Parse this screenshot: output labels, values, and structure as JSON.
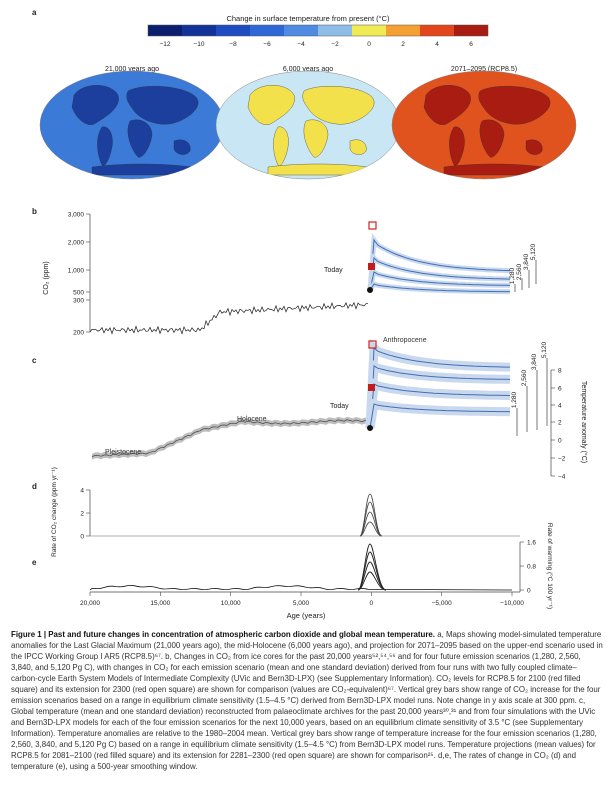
{
  "panel_a": {
    "letter": "a",
    "colorbar": {
      "title": "Change in surface temperature from present (°C)",
      "ticks": [
        "−12",
        "−10",
        "−8",
        "−6",
        "−4",
        "−2",
        "0",
        "2",
        "4",
        "6"
      ],
      "colors": [
        "#0c1f6e",
        "#14339a",
        "#1f4cc0",
        "#2e68d6",
        "#4f8be3",
        "#8fbde8",
        "#f0ea55",
        "#f4a032",
        "#e2461d",
        "#a81c12"
      ]
    },
    "maps": [
      {
        "label": "21,000 years ago",
        "ocean": "#3b7ad6",
        "land": "#1c3f9e"
      },
      {
        "label": "6,000 years ago",
        "ocean": "#c9e6f4",
        "land": "#f2e14a"
      },
      {
        "label": "2071–2095 (RCP8.5)",
        "ocean": "#e0521e",
        "land": "#a81c12"
      }
    ]
  },
  "panel_b": {
    "letter": "b",
    "ylabel": "CO₂ (ppm)",
    "yticks": [
      "3,000",
      "2,000",
      "1,000",
      "500",
      "300",
      "200"
    ],
    "today_label": "Today",
    "scenario_labels": [
      "1,280",
      "2,560",
      "3,840",
      "5,120"
    ]
  },
  "panel_c": {
    "letter": "c",
    "era_labels": {
      "pleistocene": "Pleistocene",
      "holocene": "Holocene",
      "anthropocene": "Anthropocene"
    },
    "today_label": "Today",
    "ylabel_right": "Temperature anomaly (°C)",
    "yticks_right": [
      "8",
      "6",
      "4",
      "2",
      "0",
      "−2",
      "−4"
    ],
    "scenario_labels": [
      "1,280",
      "2,560",
      "3,840",
      "5,120"
    ]
  },
  "panel_d": {
    "letter": "d",
    "ylabel": "Rate of CO₂ change (ppm yr⁻¹)",
    "yticks": [
      "4",
      "2",
      "0"
    ]
  },
  "panel_e": {
    "letter": "e",
    "ylabel_right": "Rate of warming (°C 100 yr⁻¹)",
    "yticks_right": [
      "1.6",
      "0.8",
      "0"
    ]
  },
  "xaxis": {
    "label": "Age (years)",
    "ticks": [
      "20,000",
      "15,000",
      "10,000",
      "5,000",
      "0",
      "−5,000",
      "−10,000"
    ]
  },
  "caption": {
    "title": "Figure 1 | Past and future changes in concentration of atmospheric carbon dioxide and global mean temperature.",
    "body": "a, Maps showing model-simulated temperature anomalies for the Last Glacial Maximum (21,000 years ago), the mid-Holocene (6,000 years ago), and projection for 2071–2095 based on the upper-end scenario used in the IPCC Working Group I AR5 (RCP8.5)⁶⁷. b, Changes in CO₂ from ice cores for the past 20,000 years⁵²,⁵⁴,⁵⁶ and for four future emission scenarios (1,280, 2,560, 3,840, and 5,120 Pg C), with changes in CO₂ for each emission scenario (mean and one standard deviation) derived from four runs with two fully coupled climate–carbon-cycle Earth System Models of Intermediate Complexity (UVic and Bern3D-LPX) (see Supplementary Information). CO₂ levels for RCP8.5 for 2100 (red filled square) and its extension for 2300 (red open square) are shown for comparison (values are CO₂-equivalent)⁶⁷. Vertical grey bars show range of CO₂ increase for the four emission scenarios based on a range in equilibrium climate sensitivity (1.5–4.5 °C) derived from Bern3D-LPX model runs. Note change in y axis scale at 300 ppm. c, Global temperature (mean and one standard deviation) reconstructed from palaeoclimate archives for the past 20,000 years³⁰,³¹ and from four simulations with the UVic and Bern3D-LPX models for each of the four emission scenarios for the next 10,000 years, based on an equilibrium climate sensitivity of 3.5 °C (see Supplementary Information). Temperature anomalies are relative to the 1980–2004 mean. Vertical grey bars show range of temperature increase for the four emission scenarios (1,280, 2,560, 3,840, and 5,120 Pg C) based on a range in equilibrium climate sensitivity (1.5–4.5 °C) from Bern3D-LPX model runs. Temperature projections (mean values) for RCP8.5 for 2081–2100 (red filled square) and its extension for 2281–2300 (red open square) are shown for comparison²⁵. d,e, The rates of change in CO₂ (d) and temperature (e), using a 500-year smoothing window."
  }
}
